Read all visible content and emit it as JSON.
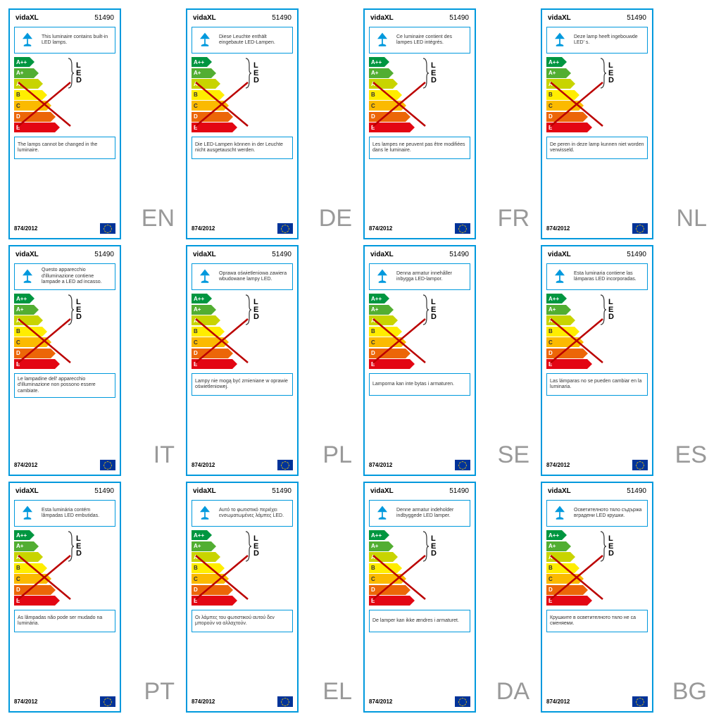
{
  "common": {
    "brand": "vidaXL",
    "model": "51490",
    "regulation": "874/2012",
    "led_label": "LED",
    "energy_classes": [
      {
        "code": "A++",
        "css": "a-pp",
        "color": "#009640"
      },
      {
        "code": "A+",
        "css": "a-p",
        "color": "#52ae32"
      },
      {
        "code": "A",
        "css": "a",
        "color": "#c8d400"
      },
      {
        "code": "B",
        "css": "b",
        "color": "#ffed00"
      },
      {
        "code": "C",
        "css": "c",
        "color": "#fbba00"
      },
      {
        "code": "D",
        "css": "d",
        "color": "#ec6608"
      },
      {
        "code": "E",
        "css": "e",
        "color": "#e30613"
      }
    ],
    "border_color": "#0099dd",
    "cross_color": "#bb0000",
    "lang_code_color": "#999999",
    "background": "#ffffff",
    "icon_color": "#0099dd"
  },
  "labels": [
    {
      "lang": "EN",
      "lamp_text": "This luminaire contains built-in LED lamps.",
      "note_text": "The lamps cannot be changed in the luminaire."
    },
    {
      "lang": "DE",
      "lamp_text": "Diese Leuchte enthält eingebaute LED-Lampen.",
      "note_text": "Die LED-Lampen können in der Leuchte nicht ausgetauscht werden."
    },
    {
      "lang": "FR",
      "lamp_text": "Ce luminaire contient des lampes LED intégrés.",
      "note_text": "Les lampes ne peuvent pas être modifiées dans le luminaire."
    },
    {
      "lang": "NL",
      "lamp_text": "Deze lamp heeft ingebouwde LED' s.",
      "note_text": "De peren in deze lamp kunnen niet worden verwisseld."
    },
    {
      "lang": "IT",
      "lamp_text": "Questo apparecchio d'illuminazione contiene lampade a LED ad incasso.",
      "note_text": "Le lampadine dell' apparecchio d'illuminazione non possono essere cambiate."
    },
    {
      "lang": "PL",
      "lamp_text": "Oprawa oświetleniowa zawiera wbudowane lampy LED.",
      "note_text": "Lampy nie mogą być zmieniane w oprawie oświetleniowej."
    },
    {
      "lang": "SE",
      "lamp_text": "Denna armatur innehåller inbygga LED-lampor.",
      "note_text": "Lamporna kan inte bytas i armaturen."
    },
    {
      "lang": "ES",
      "lamp_text": "Esta luminaria contiene las lámparas LED incorporadas.",
      "note_text": "Las lámparas no se pueden cambiar en la luminaria."
    },
    {
      "lang": "PT",
      "lamp_text": "Esta luminária contém lâmpadas LED embutidas.",
      "note_text": "As lâmpadas não pode ser mudado na luminária."
    },
    {
      "lang": "EL",
      "lamp_text": "Αυτό το φωτιστικό περιέχει ενσωματωμένες λάμπες LED.",
      "note_text": "Οι λάμπες του φωτιστικού αυτού δεν μπορούν να αλλαχτούν."
    },
    {
      "lang": "DA",
      "lamp_text": "Denne armatur indeholder indbyggede LED lamper.",
      "note_text": "De lamper kan ikke ændres i armaturet."
    },
    {
      "lang": "BG",
      "lamp_text": "Осветителното тяло съдържа вградени LED крушки.",
      "note_text": "Крушките в осветителното тяло не са сменяеми."
    }
  ]
}
